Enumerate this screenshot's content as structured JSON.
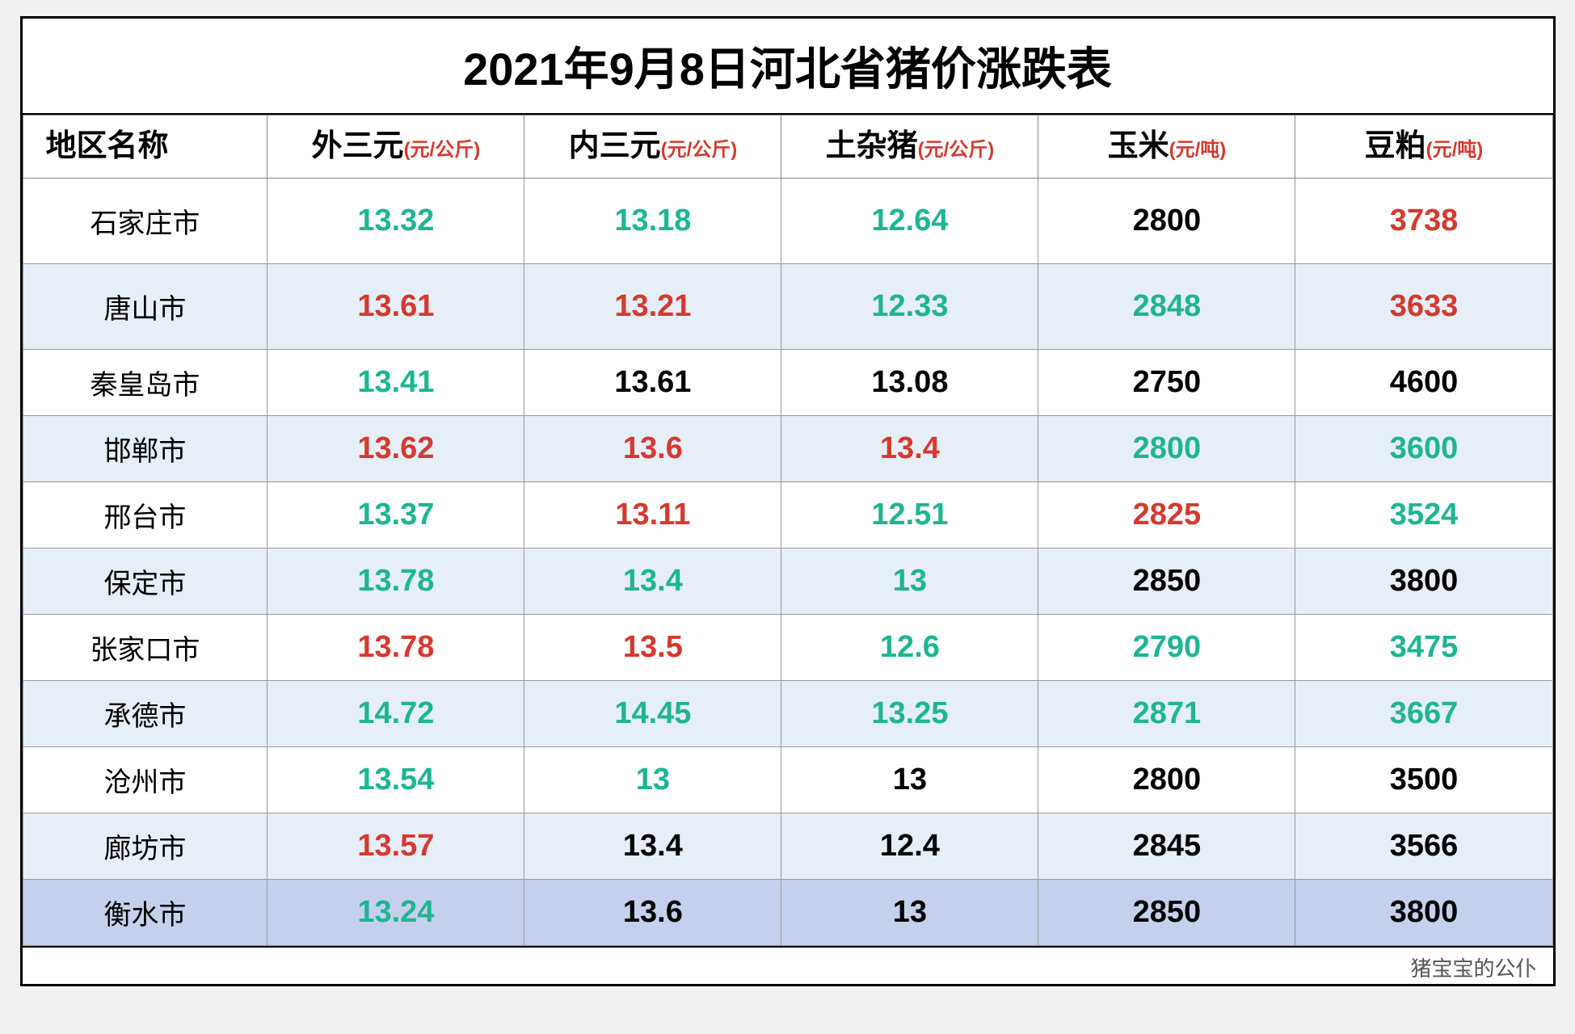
{
  "title": "2021年9月8日河北省猪价涨跌表",
  "watermark": "猪宝宝的公仆",
  "colors": {
    "teal": "#1fb592",
    "red": "#d43a2f",
    "black": "#000000",
    "band_bg": "#e6eef7",
    "selected_bg": "#c5d0ec",
    "border": "#000000",
    "grid": "#999999"
  },
  "typography": {
    "title_fontsize": 56,
    "header_fontsize": 38,
    "unit_fontsize": 24,
    "cell_fontsize": 38,
    "region_fontsize": 34
  },
  "table": {
    "columns": [
      {
        "label": "地区名称",
        "unit": ""
      },
      {
        "label": "外三元",
        "unit": "(元/公斤)"
      },
      {
        "label": "内三元",
        "unit": "(元/公斤)"
      },
      {
        "label": "土杂猪",
        "unit": "(元/公斤)"
      },
      {
        "label": "玉米",
        "unit": "(元/吨)"
      },
      {
        "label": "豆粕",
        "unit": "(元/吨)"
      }
    ],
    "rows": [
      {
        "region": "石家庄市",
        "tall": true,
        "band": false,
        "cells": [
          {
            "v": "13.32",
            "c": "teal"
          },
          {
            "v": "13.18",
            "c": "teal"
          },
          {
            "v": "12.64",
            "c": "teal"
          },
          {
            "v": "2800",
            "c": "black"
          },
          {
            "v": "3738",
            "c": "red"
          }
        ]
      },
      {
        "region": "唐山市",
        "tall": true,
        "band": true,
        "cells": [
          {
            "v": "13.61",
            "c": "red"
          },
          {
            "v": "13.21",
            "c": "red"
          },
          {
            "v": "12.33",
            "c": "teal"
          },
          {
            "v": "2848",
            "c": "teal"
          },
          {
            "v": "3633",
            "c": "red"
          }
        ]
      },
      {
        "region": "秦皇岛市",
        "band": false,
        "cells": [
          {
            "v": "13.41",
            "c": "teal"
          },
          {
            "v": "13.61",
            "c": "black"
          },
          {
            "v": "13.08",
            "c": "black"
          },
          {
            "v": "2750",
            "c": "black"
          },
          {
            "v": "4600",
            "c": "black"
          }
        ]
      },
      {
        "region": "邯郸市",
        "band": true,
        "cells": [
          {
            "v": "13.62",
            "c": "red"
          },
          {
            "v": "13.6",
            "c": "red"
          },
          {
            "v": "13.4",
            "c": "red"
          },
          {
            "v": "2800",
            "c": "teal"
          },
          {
            "v": "3600",
            "c": "teal"
          }
        ]
      },
      {
        "region": "邢台市",
        "band": false,
        "cells": [
          {
            "v": "13.37",
            "c": "teal"
          },
          {
            "v": "13.11",
            "c": "red"
          },
          {
            "v": "12.51",
            "c": "teal"
          },
          {
            "v": "2825",
            "c": "red"
          },
          {
            "v": "3524",
            "c": "teal"
          }
        ]
      },
      {
        "region": "保定市",
        "band": true,
        "cells": [
          {
            "v": "13.78",
            "c": "teal"
          },
          {
            "v": "13.4",
            "c": "teal"
          },
          {
            "v": "13",
            "c": "teal"
          },
          {
            "v": "2850",
            "c": "black"
          },
          {
            "v": "3800",
            "c": "black"
          }
        ]
      },
      {
        "region": "张家口市",
        "band": false,
        "cells": [
          {
            "v": "13.78",
            "c": "red"
          },
          {
            "v": "13.5",
            "c": "red"
          },
          {
            "v": "12.6",
            "c": "teal"
          },
          {
            "v": "2790",
            "c": "teal"
          },
          {
            "v": "3475",
            "c": "teal"
          }
        ]
      },
      {
        "region": "承德市",
        "band": true,
        "cells": [
          {
            "v": "14.72",
            "c": "teal"
          },
          {
            "v": "14.45",
            "c": "teal"
          },
          {
            "v": "13.25",
            "c": "teal"
          },
          {
            "v": "2871",
            "c": "teal"
          },
          {
            "v": "3667",
            "c": "teal"
          }
        ]
      },
      {
        "region": "沧州市",
        "band": false,
        "cells": [
          {
            "v": "13.54",
            "c": "teal"
          },
          {
            "v": "13",
            "c": "teal"
          },
          {
            "v": "13",
            "c": "black"
          },
          {
            "v": "2800",
            "c": "black"
          },
          {
            "v": "3500",
            "c": "black"
          }
        ]
      },
      {
        "region": "廊坊市",
        "band": true,
        "cells": [
          {
            "v": "13.57",
            "c": "red"
          },
          {
            "v": "13.4",
            "c": "black"
          },
          {
            "v": "12.4",
            "c": "black"
          },
          {
            "v": "2845",
            "c": "black"
          },
          {
            "v": "3566",
            "c": "black"
          }
        ]
      },
      {
        "region": "衡水市",
        "band": false,
        "selected": true,
        "cells": [
          {
            "v": "13.24",
            "c": "teal"
          },
          {
            "v": "13.6",
            "c": "black"
          },
          {
            "v": "13",
            "c": "black"
          },
          {
            "v": "2850",
            "c": "black"
          },
          {
            "v": "3800",
            "c": "black"
          }
        ]
      }
    ]
  }
}
